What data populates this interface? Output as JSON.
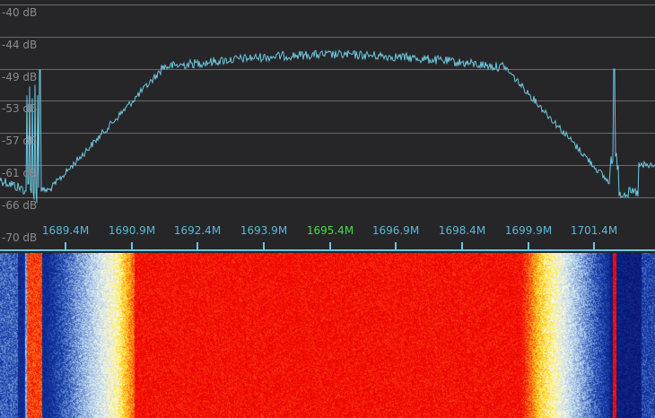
{
  "spectrum": {
    "db_levels": [
      {
        "label": "-40 dB"
      },
      {
        "label": "-44 dB"
      },
      {
        "label": "-49 dB"
      },
      {
        "label": "-53 dB"
      },
      {
        "label": "-57 dB"
      },
      {
        "label": "-61 dB"
      },
      {
        "label": "-66 dB"
      },
      {
        "label": "-70 dB"
      }
    ],
    "freq_labels": [
      "1689.4M",
      "1690.9M",
      "1692.4M",
      "1693.9M",
      "1695.4M",
      "1696.9M",
      "1698.4M",
      "1699.9M",
      "1701.4M"
    ],
    "center_frequency": "1695.4M"
  },
  "colors": {
    "background": "#262628",
    "grid": "#6a6a6e",
    "trace": "#6ec6e0",
    "axis_line": "#6ec6e0",
    "db_label": "#8c8c8c",
    "freq_label": "#59b9d8",
    "center_label": "#3ee03e"
  }
}
